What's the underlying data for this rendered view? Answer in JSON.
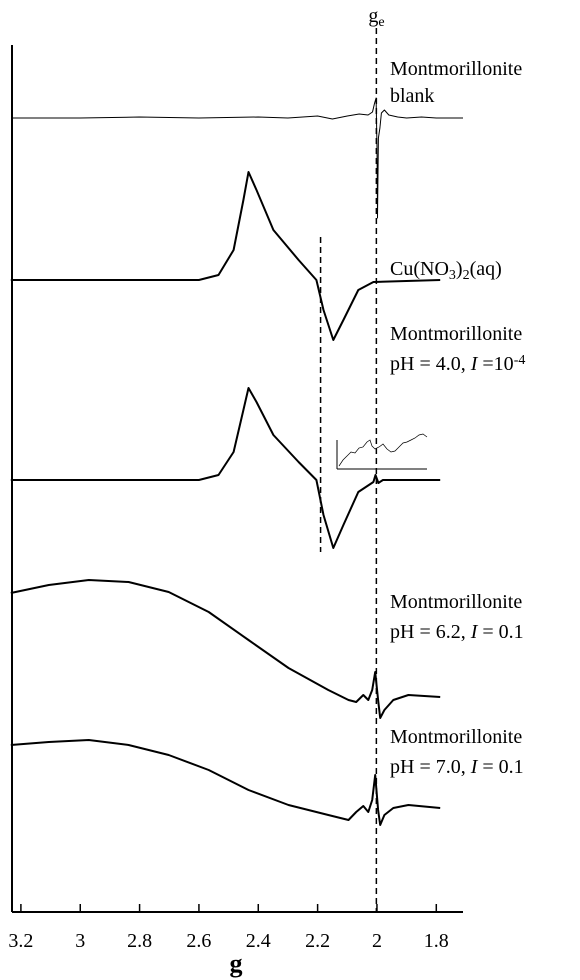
{
  "chart_data": {
    "type": "line",
    "x_label": "g",
    "reference_label": [
      {
        "text": "g"
      },
      {
        "text": "e",
        "style": "sub"
      }
    ],
    "reference_lines": [
      2.002,
      2.19
    ],
    "xlim": [
      3.23,
      1.71
    ],
    "xticks": [
      3.2,
      3.0,
      2.8,
      2.6,
      2.4,
      2.2,
      2.0,
      1.8
    ],
    "color": "#000000",
    "series": [
      {
        "label": [
          [
            {
              "text": "Montmorillonite"
            }
          ],
          [
            {
              "text": "blank"
            }
          ]
        ],
        "x": [
          3.23,
          3.0,
          2.8,
          2.6,
          2.4,
          2.3,
          2.2,
          2.15,
          2.1,
          2.06,
          2.03,
          2.015,
          2.008,
          2.003,
          2.0,
          1.998,
          1.995,
          1.99,
          1.985,
          1.975,
          1.96,
          1.93,
          1.9,
          1.85,
          1.8,
          1.71
        ],
        "values": [
          0,
          0,
          1,
          0,
          1,
          0,
          2,
          -1,
          2,
          4,
          3,
          6,
          15,
          20,
          -30,
          -100,
          -20,
          -10,
          5,
          8,
          3,
          1,
          0,
          1,
          0,
          0
        ]
      },
      {
        "label": [
          [
            {
              "text": "Cu(NO"
            },
            {
              "text": "3",
              "style": "sub"
            },
            {
              "text": ")"
            },
            {
              "text": "2",
              "style": "sub"
            },
            {
              "text": "(aq)"
            }
          ]
        ],
        "x": [
          3.234,
          2.6,
          2.534,
          2.483,
          2.45,
          2.433,
          2.406,
          2.349,
          2.264,
          2.204,
          2.18,
          2.147,
          2.113,
          2.063,
          2.012,
          1.787
        ],
        "values": [
          0,
          0,
          5,
          30,
          80,
          108,
          90,
          50,
          20,
          0,
          -30,
          -60,
          -40,
          -10,
          -2,
          0
        ]
      },
      {
        "label": [
          [
            {
              "text": "Montmorillonite"
            }
          ],
          [
            {
              "text": "pH = 4.0, "
            },
            {
              "text": "I",
              "style": "italic"
            },
            {
              "text": " =10"
            },
            {
              "text": "-4",
              "style": "sup"
            }
          ]
        ],
        "x": [
          3.234,
          2.6,
          2.534,
          2.483,
          2.45,
          2.433,
          2.406,
          2.349,
          2.264,
          2.204,
          2.18,
          2.147,
          2.113,
          2.063,
          2.012,
          2.005,
          1.995,
          1.98,
          1.787
        ],
        "values": [
          0,
          0,
          5,
          28,
          70,
          92,
          78,
          45,
          18,
          0,
          -35,
          -68,
          -45,
          -12,
          -2,
          5,
          -3,
          0,
          0
        ]
      },
      {
        "label": [
          [
            {
              "text": "Montmorillonite"
            }
          ],
          [
            {
              "text": "pH = 6.2, "
            },
            {
              "text": "I",
              "style": "italic"
            },
            {
              "text": " = 0.1"
            }
          ]
        ],
        "x": [
          3.234,
          3.106,
          2.971,
          2.837,
          2.702,
          2.567,
          2.433,
          2.298,
          2.164,
          2.096,
          2.07,
          2.046,
          2.029,
          2.016,
          2.006,
          1.996,
          1.989,
          1.975,
          1.945,
          1.894,
          1.787
        ],
        "values": [
          104,
          112,
          117,
          115,
          105,
          85,
          57,
          29,
          7,
          -3,
          -5,
          2,
          -3,
          7,
          25,
          -3,
          -21,
          -13,
          -3,
          2,
          0
        ]
      },
      {
        "label": [
          [
            {
              "text": "Montmorillonite"
            }
          ],
          [
            {
              "text": "pH = 7.0, "
            },
            {
              "text": "I",
              "style": "italic"
            },
            {
              "text": " = 0.1"
            }
          ]
        ],
        "x": [
          3.234,
          3.106,
          2.971,
          2.837,
          2.702,
          2.567,
          2.433,
          2.298,
          2.164,
          2.096,
          2.07,
          2.046,
          2.029,
          2.016,
          2.006,
          1.996,
          1.989,
          1.975,
          1.945,
          1.894,
          1.787
        ],
        "values": [
          60,
          63,
          65,
          60,
          50,
          35,
          15,
          0,
          -10,
          -15,
          -7,
          -1,
          -7,
          5,
          30,
          -5,
          -20,
          -10,
          -3,
          0,
          -3
        ]
      }
    ]
  }
}
